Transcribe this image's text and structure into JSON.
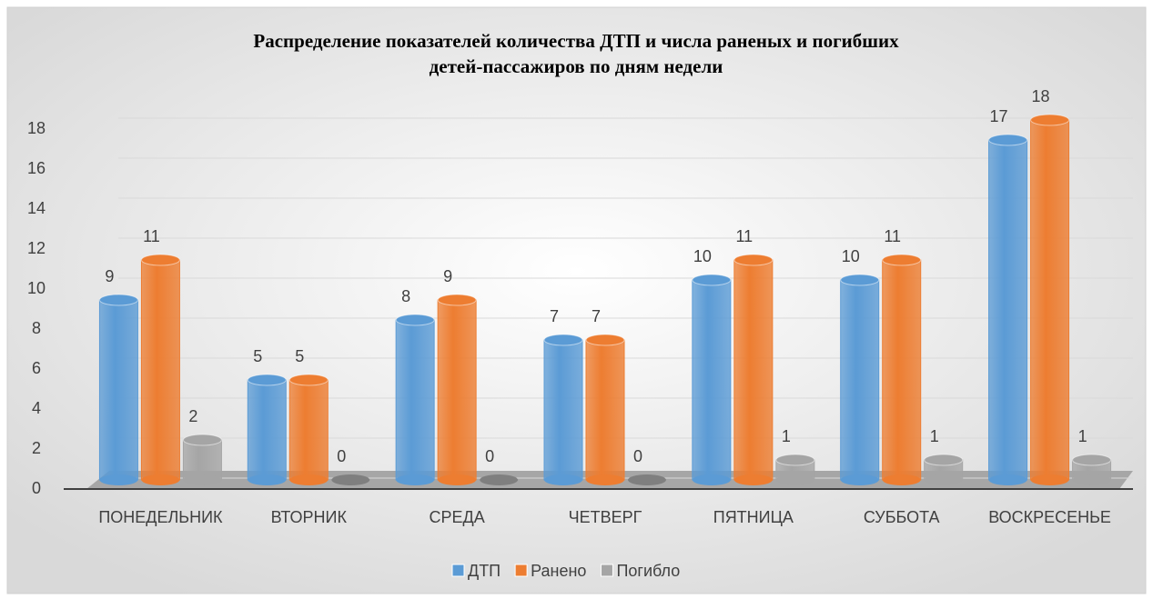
{
  "chart_data": {
    "type": "bar",
    "title": [
      "Распределение показателей количества ДТП и числа раненых и погибших",
      "детей-пассажиров по дням недели"
    ],
    "categories": [
      "ПОНЕДЕЛЬНИК",
      "ВТОРНИК",
      "СРЕДА",
      "ЧЕТВЕРГ",
      "ПЯТНИЦА",
      "СУББОТА",
      "ВОСКРЕСЕНЬЕ"
    ],
    "series": [
      {
        "name": "ДТП",
        "color": "#5b9bd5",
        "values": [
          9,
          5,
          8,
          7,
          10,
          10,
          17
        ]
      },
      {
        "name": "Ранено",
        "color": "#ed7d31",
        "values": [
          11,
          5,
          9,
          7,
          11,
          11,
          18
        ]
      },
      {
        "name": "Погибло",
        "color": "#a5a5a5",
        "values": [
          2,
          0,
          0,
          0,
          1,
          1,
          1
        ]
      }
    ],
    "ylim": [
      0,
      18
    ],
    "yticks": [
      0,
      2,
      4,
      6,
      8,
      10,
      12,
      14,
      16,
      18
    ],
    "grid": true,
    "legend": "bottom"
  }
}
